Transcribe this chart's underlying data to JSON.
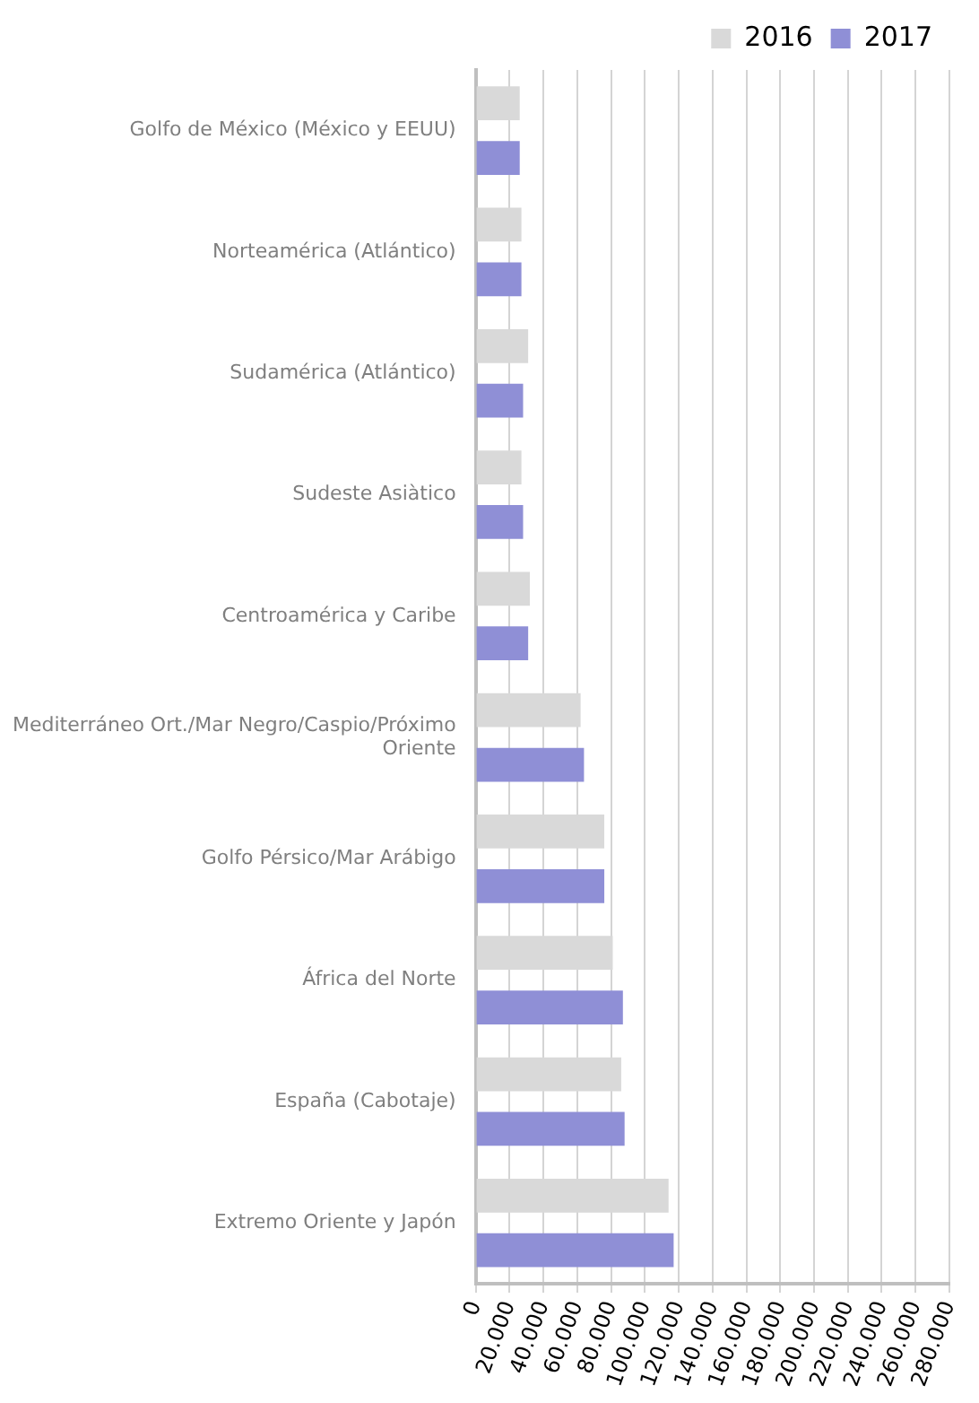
{
  "chart_data": {
    "type": "bar",
    "orientation": "horizontal",
    "categories": [
      "Golfo de México (México y EEUU)",
      "Norteamérica (Atlántico)",
      "Sudamérica (Atlántico)",
      "Sudeste Asiàtico",
      "Centroamérica y Caribe",
      "Mediterráneo Ort./Mar Negro/Caspio/Próximo Oriente",
      "Golfo Pérsico/Mar Arábigo",
      "África del Norte",
      "España (Cabotaje)",
      "Extremo Oriente y Japón"
    ],
    "series": [
      {
        "name": "2016",
        "color": "#d9d9d9",
        "values": [
          26000,
          27000,
          31000,
          27000,
          32000,
          62000,
          76000,
          81000,
          86000,
          114000
        ]
      },
      {
        "name": "2017",
        "color": "#8f8fd6",
        "values": [
          26000,
          27000,
          28000,
          28000,
          31000,
          64000,
          76000,
          87000,
          88000,
          117000
        ]
      }
    ],
    "xlim": [
      0,
      280000
    ],
    "xticks": [
      0,
      {
        "value": 20000,
        "label": "20.000"
      },
      {
        "value": 40000,
        "label": "40.000"
      },
      {
        "value": 60000,
        "label": "60.000"
      },
      {
        "value": 80000,
        "label": "80.000"
      },
      {
        "value": 100000,
        "label": "100.000"
      },
      {
        "value": 120000,
        "label": "120.000"
      },
      {
        "value": 140000,
        "label": "140.000"
      },
      {
        "value": 160000,
        "label": "160.000"
      },
      {
        "value": 180000,
        "label": "180.000"
      },
      {
        "value": 200000,
        "label": "200.000"
      },
      {
        "value": 220000,
        "label": "220.000"
      },
      {
        "value": 240000,
        "label": "240.000"
      },
      {
        "value": 260000,
        "label": "260.000"
      },
      {
        "value": 280000,
        "label": "280.000"
      }
    ],
    "grid": "x",
    "legend": "top right"
  }
}
